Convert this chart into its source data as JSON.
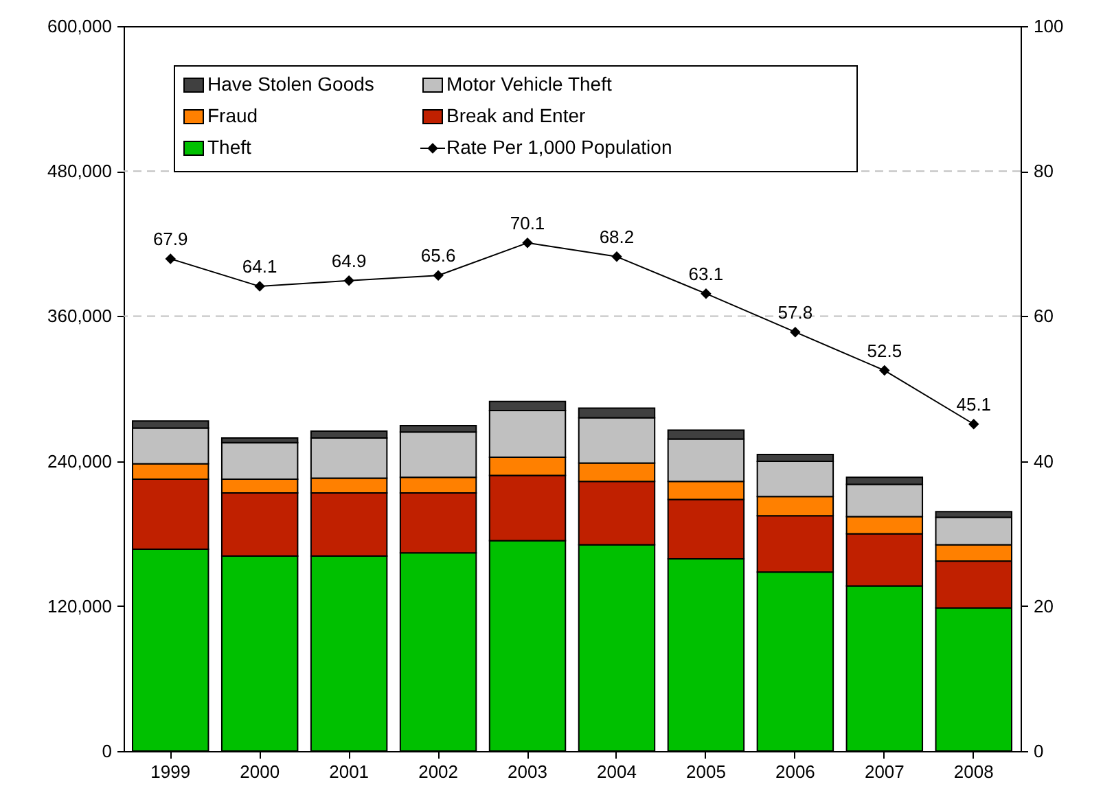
{
  "chart_data": {
    "type": "bar",
    "stacked": true,
    "categories": [
      "1999",
      "2000",
      "2001",
      "2002",
      "2003",
      "2004",
      "2005",
      "2006",
      "2007",
      "2008"
    ],
    "series": [
      {
        "name": "Theft",
        "color": "#00c000",
        "values": [
          167000,
          161400,
          161400,
          164000,
          174200,
          170800,
          159100,
          148100,
          136700,
          118500
        ]
      },
      {
        "name": "Break and Enter",
        "color": "#c02000",
        "values": [
          58000,
          52200,
          52200,
          49600,
          53900,
          52300,
          49200,
          46600,
          43200,
          38700
        ]
      },
      {
        "name": "Fraud",
        "color": "#ff8000",
        "values": [
          12800,
          11400,
          12200,
          12900,
          15100,
          15200,
          14800,
          15900,
          14100,
          13600
        ]
      },
      {
        "name": "Motor Vehicle Theft",
        "color": "#c0c0c0",
        "values": [
          29600,
          30300,
          33300,
          37500,
          38600,
          37500,
          35200,
          29200,
          26800,
          22700
        ]
      },
      {
        "name": "Have Stolen Goods",
        "color": "#404040",
        "values": [
          5700,
          3800,
          5700,
          5300,
          7600,
          8000,
          7300,
          5700,
          5700,
          4600
        ]
      },
      {
        "name": "Rate Per 1,000 Population",
        "type": "line",
        "axis": "y2",
        "color": "#000000",
        "marker": "diamond",
        "line_style": "solid",
        "values": [
          67.9,
          64.1,
          64.9,
          65.6,
          70.1,
          68.2,
          63.1,
          57.8,
          52.5,
          45.1
        ],
        "value_labels": [
          "67.9",
          "64.1",
          "64.9",
          "65.6",
          "70.1",
          "68.2",
          "63.1",
          "57.8",
          "52.5",
          "45.1"
        ]
      }
    ],
    "ylim": [
      0,
      600000
    ],
    "yticks": [
      {
        "value": 0,
        "label": "0"
      },
      {
        "value": 120000,
        "label": "120,000"
      },
      {
        "value": 240000,
        "label": "240,000"
      },
      {
        "value": 360000,
        "label": "360,000"
      },
      {
        "value": 480000,
        "label": "480,000"
      },
      {
        "value": 600000,
        "label": "600,000"
      }
    ],
    "y2lim": [
      0,
      100
    ],
    "y2ticks": [
      0,
      20,
      40,
      60,
      80,
      100
    ],
    "ref_lines": [
      {
        "axis": "y",
        "value": 360000,
        "color": "#c0c0c0",
        "line_style": "dashed"
      },
      {
        "axis": "y",
        "value": 480000,
        "color": "#c0c0c0",
        "line_style": "dashed"
      }
    ],
    "grid": false,
    "legend": "top left"
  }
}
